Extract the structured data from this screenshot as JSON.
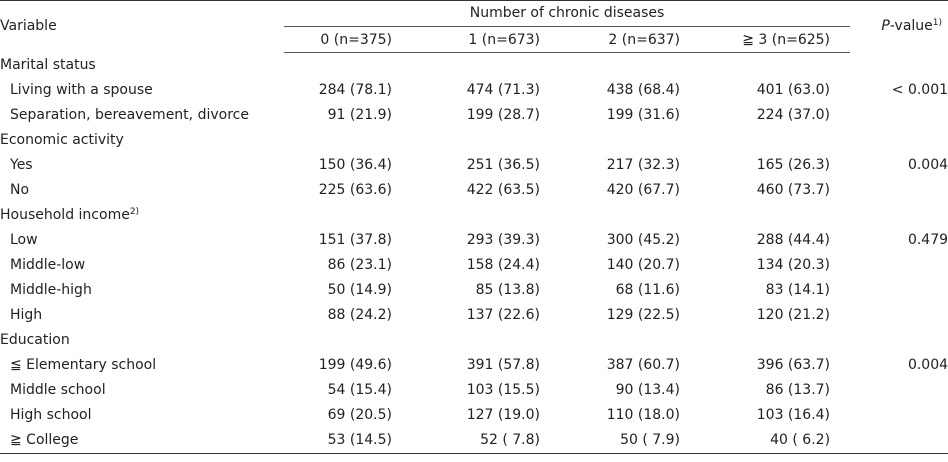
{
  "header": {
    "variable": "Variable",
    "group_title": "Number of chronic diseases",
    "groups": [
      "0 (n=375)",
      "1 (n=673)",
      "2 (n=637)",
      "≧ 3 (n=625)"
    ],
    "pvalue_italic": "P",
    "pvalue_rest": "-value",
    "pvalue_sup": "1)"
  },
  "sections": [
    {
      "title": "Marital status",
      "title_sup": "",
      "rows": [
        {
          "label": "Living with a spouse",
          "values": [
            "284 (78.1)",
            "474 (71.3)",
            "438 (68.4)",
            "401 (63.0)"
          ],
          "p": "< 0.001"
        },
        {
          "label": "Separation, bereavement, divorce",
          "values": [
            "91 (21.9)",
            "199 (28.7)",
            "199 (31.6)",
            "224 (37.0)"
          ],
          "p": ""
        }
      ]
    },
    {
      "title": "Economic activity",
      "title_sup": "",
      "rows": [
        {
          "label": "Yes",
          "values": [
            "150 (36.4)",
            "251 (36.5)",
            "217 (32.3)",
            "165 (26.3)"
          ],
          "p": "0.004"
        },
        {
          "label": "No",
          "values": [
            "225 (63.6)",
            "422 (63.5)",
            "420 (67.7)",
            "460 (73.7)"
          ],
          "p": ""
        }
      ]
    },
    {
      "title": "Household income",
      "title_sup": "2)",
      "rows": [
        {
          "label": "Low",
          "values": [
            "151 (37.8)",
            "293 (39.3)",
            "300 (45.2)",
            "288 (44.4)"
          ],
          "p": "0.479"
        },
        {
          "label": "Middle-low",
          "values": [
            "86 (23.1)",
            "158 (24.4)",
            "140 (20.7)",
            "134 (20.3)"
          ],
          "p": ""
        },
        {
          "label": "Middle-high",
          "values": [
            "50 (14.9)",
            "85 (13.8)",
            "68 (11.6)",
            "83 (14.1)"
          ],
          "p": ""
        },
        {
          "label": "High",
          "values": [
            "88 (24.2)",
            "137 (22.6)",
            "129 (22.5)",
            "120 (21.2)"
          ],
          "p": ""
        }
      ]
    },
    {
      "title": "Education",
      "title_sup": "",
      "rows": [
        {
          "label": "≦ Elementary school",
          "values": [
            "199 (49.6)",
            "391 (57.8)",
            "387 (60.7)",
            "396 (63.7)"
          ],
          "p": "0.004"
        },
        {
          "label": "Middle school",
          "values": [
            "54 (15.4)",
            "103 (15.5)",
            "90 (13.4)",
            "86 (13.7)"
          ],
          "p": ""
        },
        {
          "label": "High school",
          "values": [
            "69 (20.5)",
            "127 (19.0)",
            "110 (18.0)",
            "103 (16.4)"
          ],
          "p": ""
        },
        {
          "label": "≧ College",
          "values": [
            "53 (14.5)",
            "52 ( 7.8)",
            "50 ( 7.9)",
            "40 ( 6.2)"
          ],
          "p": ""
        }
      ]
    }
  ]
}
